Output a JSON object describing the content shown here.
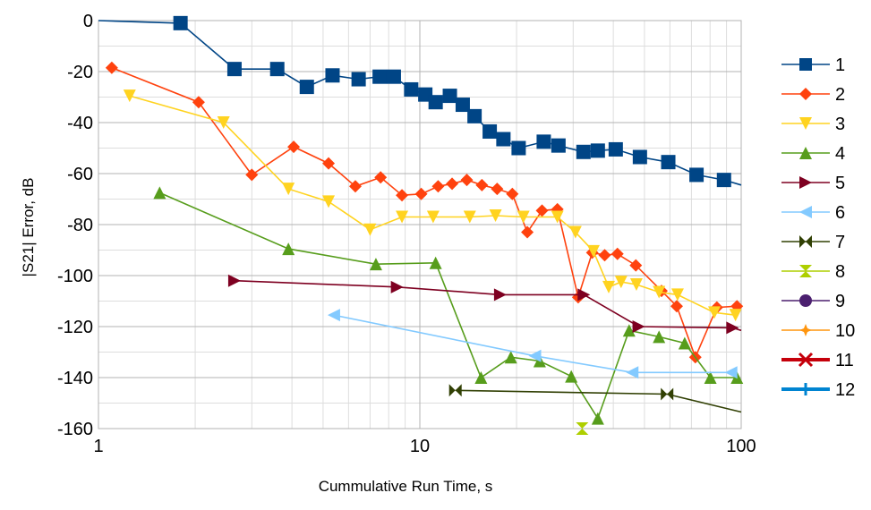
{
  "chart_data": {
    "type": "line",
    "title": "",
    "xlabel": "Cummulative Run Time, s",
    "ylabel": "|S21| Error, dB",
    "xscale": "log",
    "xlim": [
      1,
      100
    ],
    "ylim": [
      -160,
      0
    ],
    "x_tick_labels": [
      "1",
      "10",
      "100"
    ],
    "y_tick_labels": [
      "0",
      "-20",
      "-40",
      "-60",
      "-80",
      "-100",
      "-120",
      "-140",
      "-160"
    ],
    "grid": "major and minor, vertical and horizontal",
    "legend_position": "right",
    "series": [
      {
        "name": "1",
        "color": "#004586",
        "marker": "square",
        "points": [
          [
            1.0,
            0
          ],
          [
            1.8,
            -1
          ],
          [
            2.65,
            -19
          ],
          [
            3.6,
            -19
          ],
          [
            4.45,
            -26
          ],
          [
            5.35,
            -21.5
          ],
          [
            6.45,
            -23
          ],
          [
            7.5,
            -22
          ],
          [
            8.3,
            -22
          ],
          [
            9.4,
            -27
          ],
          [
            10.4,
            -29
          ],
          [
            11.2,
            -32
          ],
          [
            12.4,
            -29.5
          ],
          [
            13.6,
            -33
          ],
          [
            14.8,
            -37.5
          ],
          [
            16.5,
            -43.5
          ],
          [
            18.2,
            -46.5
          ],
          [
            20.3,
            -50
          ],
          [
            24.3,
            -47.5
          ],
          [
            27.0,
            -49
          ],
          [
            32.3,
            -51.5
          ],
          [
            35.8,
            -51
          ],
          [
            40.7,
            -50.5
          ],
          [
            48.4,
            -53.5
          ],
          [
            59.3,
            -55.5
          ],
          [
            72.6,
            -60.5
          ],
          [
            88.4,
            -62.5
          ],
          [
            100,
            -64.5
          ]
        ]
      },
      {
        "name": "2",
        "color": "#ff420e",
        "marker": "diamond",
        "points": [
          [
            1.1,
            -18.5
          ],
          [
            2.05,
            -32
          ],
          [
            3.0,
            -60.5
          ],
          [
            4.05,
            -49.5
          ],
          [
            5.2,
            -56
          ],
          [
            6.3,
            -65
          ],
          [
            7.55,
            -61.5
          ],
          [
            8.8,
            -68.5
          ],
          [
            10.1,
            -68
          ],
          [
            11.4,
            -65
          ],
          [
            12.6,
            -64
          ],
          [
            14.0,
            -62.5
          ],
          [
            15.6,
            -64.5
          ],
          [
            17.4,
            -66
          ],
          [
            19.4,
            -68
          ],
          [
            21.6,
            -83
          ],
          [
            24.0,
            -74.5
          ],
          [
            26.8,
            -74
          ],
          [
            31.1,
            -108.5
          ],
          [
            34.4,
            -91
          ],
          [
            37.6,
            -92
          ],
          [
            41.2,
            -91.5
          ],
          [
            47.0,
            -96
          ],
          [
            56.5,
            -106
          ],
          [
            63.0,
            -112
          ],
          [
            72.0,
            -132
          ],
          [
            84.0,
            -112.5
          ],
          [
            97.0,
            -112
          ]
        ]
      },
      {
        "name": "3",
        "color": "#ffd320",
        "marker": "triangle-down",
        "points": [
          [
            1.25,
            -29.5
          ],
          [
            2.45,
            -40
          ],
          [
            3.9,
            -66
          ],
          [
            5.2,
            -71
          ],
          [
            7.0,
            -82
          ],
          [
            8.8,
            -77
          ],
          [
            11.0,
            -77
          ],
          [
            14.3,
            -77
          ],
          [
            17.2,
            -76.5
          ],
          [
            21.0,
            -77
          ],
          [
            26.8,
            -77
          ],
          [
            30.5,
            -83
          ],
          [
            34.7,
            -90.5
          ],
          [
            38.7,
            -104.5
          ],
          [
            42.3,
            -102.5
          ],
          [
            47.2,
            -103.5
          ],
          [
            55.5,
            -106.5
          ],
          [
            63.4,
            -107.5
          ],
          [
            82.5,
            -114.5
          ],
          [
            96.0,
            -115.5
          ]
        ]
      },
      {
        "name": "4",
        "color": "#579d1c",
        "marker": "triangle-up",
        "points": [
          [
            1.55,
            -67.5
          ],
          [
            3.9,
            -89.5
          ],
          [
            7.3,
            -95.5
          ],
          [
            11.2,
            -95
          ],
          [
            15.5,
            -140
          ],
          [
            19.2,
            -132
          ],
          [
            23.6,
            -133.5
          ],
          [
            29.6,
            -139.5
          ],
          [
            35.8,
            -156
          ],
          [
            44.8,
            -121.5
          ],
          [
            55.5,
            -124
          ],
          [
            66.7,
            -126.5
          ],
          [
            80.2,
            -140
          ],
          [
            97.0,
            -140
          ]
        ]
      },
      {
        "name": "5",
        "color": "#7e0021",
        "marker": "triangle-right",
        "points": [
          [
            2.65,
            -102
          ],
          [
            8.5,
            -104.5
          ],
          [
            17.8,
            -107.5
          ],
          [
            32.4,
            -107.5
          ],
          [
            48.0,
            -120
          ],
          [
            94.0,
            -120.5
          ],
          [
            100,
            -121.5
          ]
        ]
      },
      {
        "name": "6",
        "color": "#83caff",
        "marker": "triangle-left",
        "points": [
          [
            5.4,
            -115.5
          ],
          [
            22.8,
            -131.5
          ],
          [
            45.8,
            -138
          ],
          [
            93.0,
            -138
          ]
        ]
      },
      {
        "name": "7",
        "color": "#314004",
        "marker": "bowtie",
        "points": [
          [
            12.9,
            -145
          ],
          [
            58.8,
            -146.5
          ],
          [
            100,
            -153.5
          ]
        ]
      },
      {
        "name": "8",
        "color": "#aecf00",
        "marker": "hourglass",
        "points": [
          [
            32.0,
            -160
          ]
        ]
      },
      {
        "name": "9",
        "color": "#4b1f6f",
        "marker": "circle",
        "points": []
      },
      {
        "name": "10",
        "color": "#ff950e",
        "marker": "star",
        "points": []
      },
      {
        "name": "11",
        "color": "#c5000b",
        "marker": "x",
        "points": []
      },
      {
        "name": "12",
        "color": "#0084d1",
        "marker": "plus",
        "points": []
      }
    ]
  }
}
